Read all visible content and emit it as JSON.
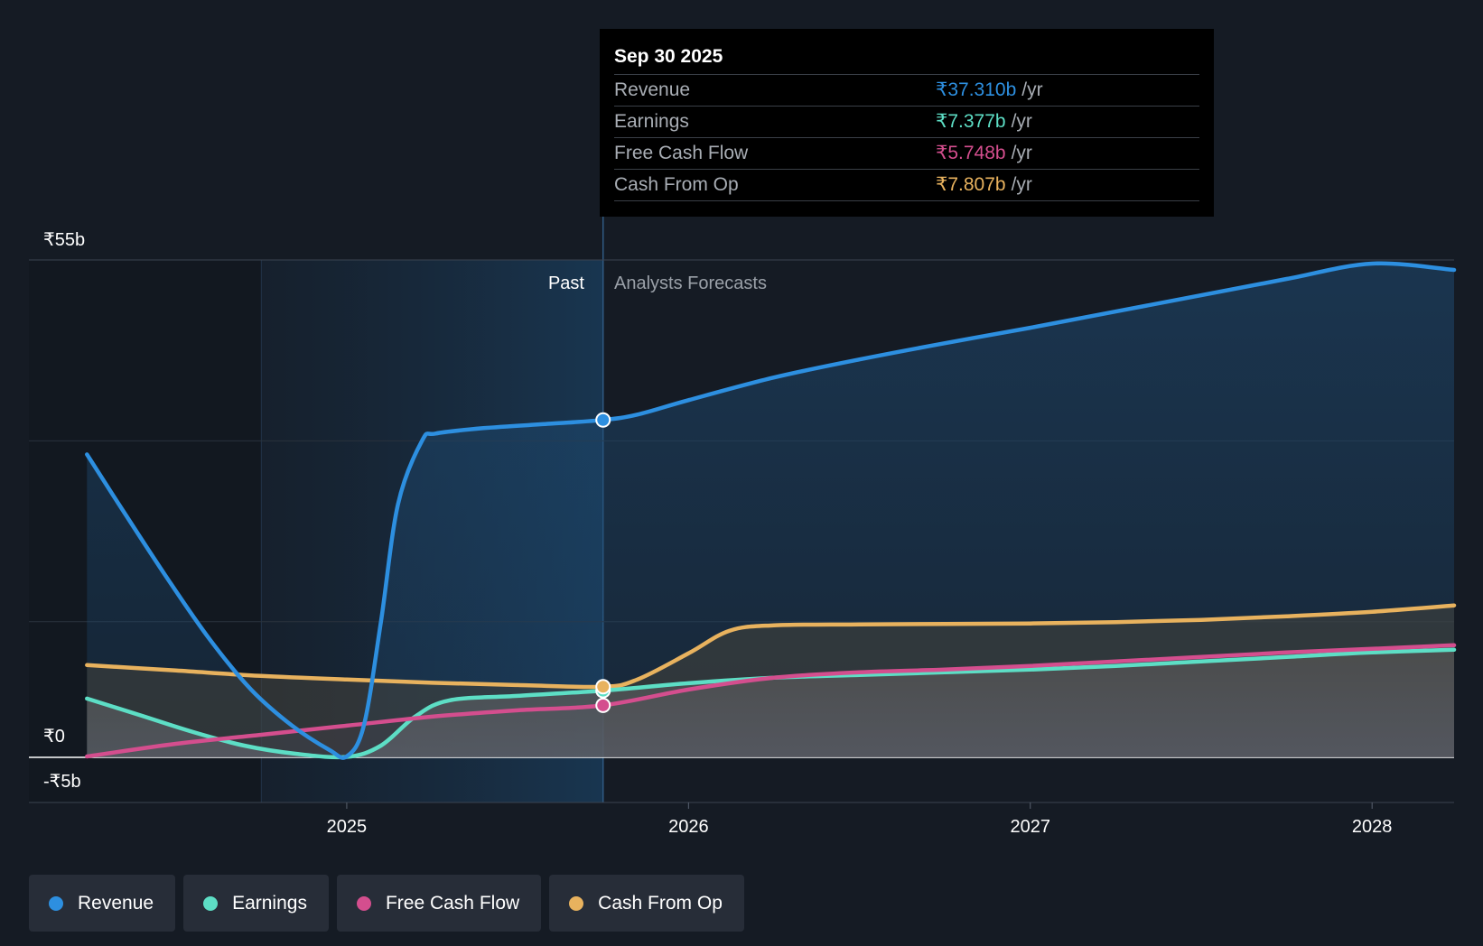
{
  "chart_data": {
    "type": "area",
    "currency_unit": "₹ billions",
    "y_tick_labels": [
      "₹55b",
      "₹0",
      "-₹5b"
    ],
    "ylim": [
      -5,
      55
    ],
    "x_tick_labels": [
      "2025",
      "2026",
      "2027",
      "2028"
    ],
    "x_ticks": [
      2025.0,
      2026.0,
      2027.0,
      2028.0
    ],
    "xlim": [
      2024.07,
      2028.24
    ],
    "past_region_start": 2024.75,
    "past_label": "Past",
    "forecast_label": "Analysts Forecasts",
    "divider_x": 2025.75,
    "series": [
      {
        "name": "Revenue",
        "color": "#2d8fe0",
        "x": [
          2024.24,
          2024.35,
          2024.48,
          2024.6,
          2024.72,
          2024.84,
          2024.95,
          2025.0,
          2025.05,
          2025.1,
          2025.15,
          2025.22,
          2025.26,
          2025.4,
          2025.6,
          2025.75,
          2025.85,
          2026.0,
          2026.25,
          2026.5,
          2026.75,
          2027.0,
          2027.25,
          2027.5,
          2027.75,
          2028.0,
          2028.24
        ],
        "values": [
          33.5,
          27,
          19.5,
          13,
          7.5,
          3.5,
          0.8,
          0.1,
          3.5,
          15,
          28,
          35,
          35.8,
          36.4,
          36.9,
          37.31,
          37.9,
          39.5,
          42,
          44,
          45.8,
          47.5,
          49.3,
          51.1,
          52.9,
          54.6,
          53.9
        ]
      },
      {
        "name": "Earnings",
        "color": "#5ddec5",
        "x": [
          2024.24,
          2024.4,
          2024.55,
          2024.7,
          2024.85,
          2025.0,
          2025.1,
          2025.2,
          2025.3,
          2025.5,
          2025.75,
          2026.0,
          2026.25,
          2026.5,
          2026.75,
          2027.0,
          2027.25,
          2027.5,
          2027.75,
          2028.0,
          2028.24
        ],
        "values": [
          6.5,
          4.6,
          2.8,
          1.3,
          0.4,
          0.05,
          1.3,
          4.5,
          6.3,
          6.8,
          7.377,
          8.2,
          8.8,
          9.1,
          9.4,
          9.7,
          10.1,
          10.6,
          11.1,
          11.6,
          11.9
        ]
      },
      {
        "name": "Free Cash Flow",
        "color": "#d44e8e",
        "x": [
          2024.24,
          2024.5,
          2024.75,
          2025.0,
          2025.25,
          2025.5,
          2025.75,
          2026.0,
          2026.25,
          2026.5,
          2026.75,
          2027.0,
          2027.25,
          2027.5,
          2027.75,
          2028.0,
          2028.24
        ],
        "values": [
          0.1,
          1.5,
          2.5,
          3.5,
          4.5,
          5.2,
          5.748,
          7.5,
          8.8,
          9.4,
          9.7,
          10.1,
          10.6,
          11.1,
          11.6,
          12.0,
          12.4
        ]
      },
      {
        "name": "Cash From Op",
        "color": "#e8b25e",
        "x": [
          2024.24,
          2024.5,
          2024.75,
          2025.0,
          2025.25,
          2025.5,
          2025.75,
          2025.85,
          2026.0,
          2026.12,
          2026.25,
          2026.5,
          2026.75,
          2027.0,
          2027.25,
          2027.5,
          2027.75,
          2028.0,
          2028.24
        ],
        "values": [
          10.2,
          9.6,
          9.0,
          8.6,
          8.25,
          8.0,
          7.807,
          8.6,
          11.5,
          14.0,
          14.6,
          14.7,
          14.75,
          14.8,
          14.95,
          15.2,
          15.6,
          16.1,
          16.8
        ]
      }
    ]
  },
  "tooltip": {
    "date": "Sep 30 2025",
    "unit": "/yr",
    "rows": [
      {
        "label": "Revenue",
        "value": "₹37.310b",
        "color": "#2d8fe0"
      },
      {
        "label": "Earnings",
        "value": "₹7.377b",
        "color": "#5ddec5"
      },
      {
        "label": "Free Cash Flow",
        "value": "₹5.748b",
        "color": "#d44e8e"
      },
      {
        "label": "Cash From Op",
        "value": "₹7.807b",
        "color": "#e8b25e"
      }
    ]
  },
  "legend": [
    {
      "label": "Revenue",
      "color": "#2d8fe0"
    },
    {
      "label": "Earnings",
      "color": "#5ddec5"
    },
    {
      "label": "Free Cash Flow",
      "color": "#d44e8e"
    },
    {
      "label": "Cash From Op",
      "color": "#e8b25e"
    }
  ]
}
